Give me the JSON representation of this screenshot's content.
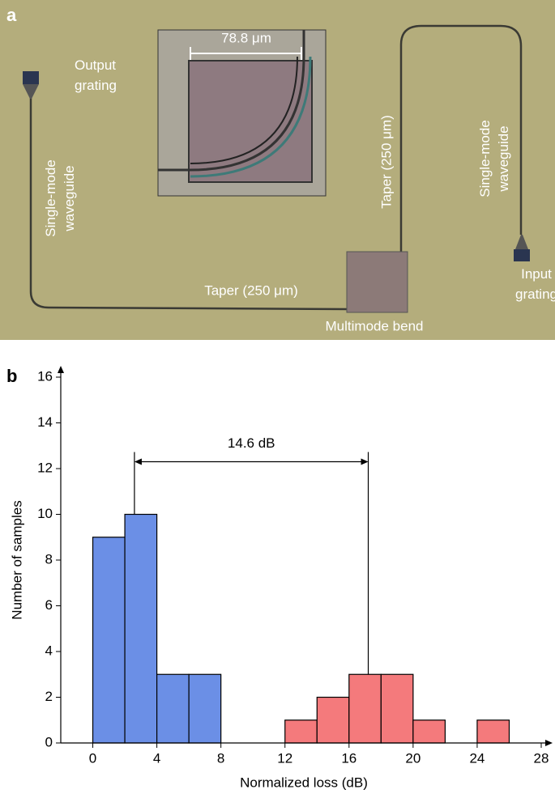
{
  "panel_a": {
    "label": "a",
    "output_grating": [
      "Output",
      "grating"
    ],
    "left_waveguide": [
      "Single-mode",
      "waveguide"
    ],
    "scale_bar": "78.8 μm",
    "taper_vertical": "Taper (250 μm)",
    "right_waveguide": [
      "Single-mode",
      "waveguide"
    ],
    "input_grating": [
      "Input",
      "grating"
    ],
    "taper_horizontal": "Taper (250 μm)",
    "multimode_bend": "Multimode bend"
  },
  "chart_data": {
    "type": "histogram",
    "panel_label": "b",
    "xlabel": "Normalized loss (dB)",
    "ylabel": "Number of samples",
    "xlim": [
      -2,
      28
    ],
    "ylim": [
      0,
      16
    ],
    "xticks": [
      0,
      4,
      8,
      12,
      16,
      20,
      24,
      28
    ],
    "yticks": [
      0,
      2,
      4,
      6,
      8,
      10,
      12,
      14,
      16
    ],
    "series": [
      {
        "color": "#6b8fe6",
        "bins": [
          0,
          2,
          4,
          6,
          8
        ],
        "values": [
          9,
          10,
          3,
          3
        ]
      },
      {
        "color": "#f47a7c",
        "bins": [
          12,
          14,
          16,
          18,
          20,
          22,
          24,
          26
        ],
        "values": [
          1,
          2,
          3,
          3,
          1,
          0,
          1
        ]
      }
    ],
    "annotation": {
      "text": "14.6 dB",
      "x": [
        2.6,
        17.2
      ],
      "y": 12.3
    }
  }
}
